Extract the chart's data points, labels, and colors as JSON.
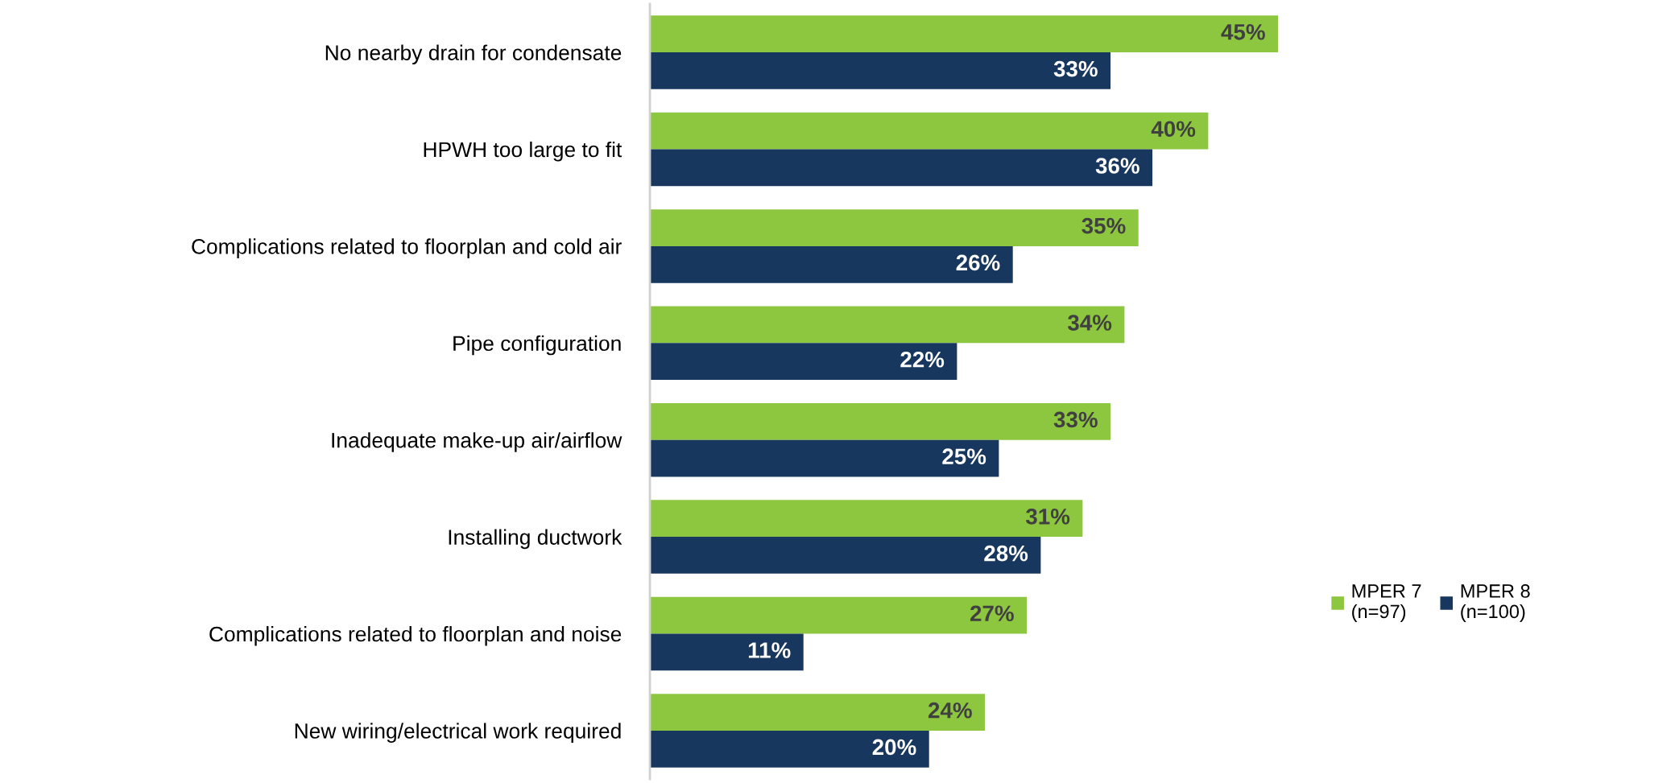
{
  "chart_data": {
    "type": "bar",
    "orientation": "horizontal",
    "categories": [
      "No nearby drain for condensate",
      "HPWH too large to fit",
      "Complications related to floorplan and cold air",
      "Pipe configuration",
      "Inadequate make-up air/airflow",
      "Installing ductwork",
      "Complications related to floorplan and noise",
      "New wiring/electrical work required"
    ],
    "series": [
      {
        "name": "MPER 7\n(n=97)",
        "color": "#8dc63f",
        "values": [
          45,
          40,
          35,
          34,
          33,
          31,
          27,
          24
        ],
        "value_labels": [
          "45%",
          "40%",
          "35%",
          "34%",
          "33%",
          "31%",
          "27%",
          "24%"
        ]
      },
      {
        "name": "MPER 8\n(n=100)",
        "color": "#17375e",
        "values": [
          33,
          36,
          26,
          22,
          25,
          28,
          11,
          20
        ],
        "value_labels": [
          "33%",
          "36%",
          "26%",
          "22%",
          "25%",
          "28%",
          "11%",
          "20%"
        ]
      }
    ],
    "legend": "right",
    "grid": false,
    "tick_labels": "y"
  }
}
